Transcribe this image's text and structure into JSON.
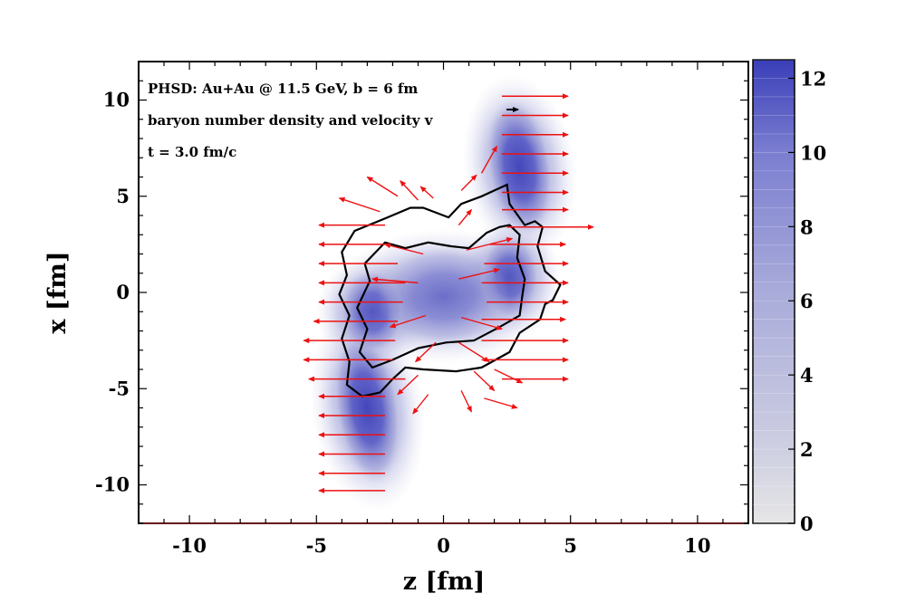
{
  "chart_data": {
    "type": "heatmap",
    "annotations": [
      "PHSD:  Au+Au @ 11.5 GeV,  b = 6 fm",
      "baryon number density and velocity  v",
      "t = 3.0 fm/c"
    ],
    "xlabel": "z  [fm]",
    "ylabel": "x  [fm]",
    "xlim": [
      -12,
      12
    ],
    "ylim": [
      -12,
      12
    ],
    "x_ticks": [
      -10,
      -5,
      0,
      5,
      10
    ],
    "x_tick_labels": [
      "-10",
      "-5",
      "0",
      "5",
      "10"
    ],
    "y_ticks": [
      -10,
      -5,
      0,
      5,
      10
    ],
    "y_tick_labels": [
      "-10",
      "-5",
      "0",
      "5",
      "10"
    ],
    "colorbar": {
      "range": [
        0,
        12.5
      ],
      "ticks": [
        0,
        2,
        4,
        6,
        8,
        10,
        12
      ],
      "tick_labels": [
        "0",
        "2",
        "4",
        "6",
        "8",
        "10",
        "12"
      ],
      "low_color": "#e4e4e4",
      "high_color": "#3c40b8"
    },
    "density_blobs": [
      {
        "name": "right-spectator",
        "cx": 3.0,
        "cy": 6.5,
        "rx": 1.3,
        "ry": 3.6,
        "rot": -8,
        "peak": 11.5
      },
      {
        "name": "left-spectator",
        "cx": -3.0,
        "cy": -6.0,
        "rx": 1.3,
        "ry": 4.0,
        "rot": -8,
        "peak": 11.5
      },
      {
        "name": "right-participant",
        "cx": 2.6,
        "cy": 0.8,
        "rx": 1.2,
        "ry": 2.2,
        "rot": 0,
        "peak": 9.5
      },
      {
        "name": "left-participant",
        "cx": -2.8,
        "cy": -1.0,
        "rx": 1.3,
        "ry": 2.2,
        "rot": 0,
        "peak": 9.5
      },
      {
        "name": "central-region",
        "cx": 0.0,
        "cy": -0.2,
        "rx": 2.6,
        "ry": 2.6,
        "rot": 0,
        "peak": 5.5
      }
    ],
    "contours": [
      {
        "level": "outer",
        "points": [
          [
            -3.5,
            3.2
          ],
          [
            -2.2,
            3.9
          ],
          [
            -1.3,
            4.4
          ],
          [
            -0.8,
            4.4
          ],
          [
            0.2,
            3.9
          ],
          [
            0.7,
            4.6
          ],
          [
            1.5,
            5.0
          ],
          [
            2.0,
            5.3
          ],
          [
            2.5,
            5.6
          ],
          [
            2.6,
            4.6
          ],
          [
            3.2,
            3.5
          ],
          [
            3.6,
            3.7
          ],
          [
            3.9,
            3.4
          ],
          [
            3.7,
            2.4
          ],
          [
            4.0,
            1.1
          ],
          [
            4.6,
            0.4
          ],
          [
            4.3,
            -0.4
          ],
          [
            4.0,
            -0.6
          ],
          [
            3.8,
            -1.4
          ],
          [
            3.0,
            -2.1
          ],
          [
            2.6,
            -3.1
          ],
          [
            1.5,
            -3.9
          ],
          [
            0.5,
            -4.1
          ],
          [
            -0.8,
            -4.0
          ],
          [
            -1.5,
            -3.9
          ],
          [
            -2.0,
            -4.5
          ],
          [
            -2.5,
            -5.2
          ],
          [
            -3.2,
            -5.4
          ],
          [
            -3.8,
            -4.8
          ],
          [
            -3.7,
            -3.6
          ],
          [
            -4.0,
            -2.4
          ],
          [
            -3.7,
            -1.2
          ],
          [
            -4.1,
            -0.1
          ],
          [
            -3.8,
            0.9
          ],
          [
            -4.0,
            2.1
          ],
          [
            -3.5,
            3.2
          ]
        ]
      },
      {
        "level": "inner",
        "points": [
          [
            -2.3,
            2.6
          ],
          [
            -1.5,
            2.3
          ],
          [
            -0.6,
            2.6
          ],
          [
            0.3,
            2.4
          ],
          [
            1.0,
            2.3
          ],
          [
            1.7,
            3.1
          ],
          [
            2.2,
            3.4
          ],
          [
            2.6,
            3.5
          ],
          [
            3.0,
            3.0
          ],
          [
            2.9,
            1.8
          ],
          [
            3.2,
            0.7
          ],
          [
            3.1,
            -0.2
          ],
          [
            3.0,
            -1.2
          ],
          [
            2.2,
            -1.8
          ],
          [
            1.2,
            -2.5
          ],
          [
            0.1,
            -2.6
          ],
          [
            -1.0,
            -2.9
          ],
          [
            -2.0,
            -3.5
          ],
          [
            -2.8,
            -3.9
          ],
          [
            -3.3,
            -3.1
          ],
          [
            -3.0,
            -1.9
          ],
          [
            -3.4,
            -0.8
          ],
          [
            -2.9,
            0.6
          ],
          [
            -3.1,
            1.5
          ],
          [
            -2.3,
            2.6
          ]
        ]
      }
    ],
    "velocity_field": [
      {
        "x": 2.3,
        "y": 10.2,
        "dx": 2.6,
        "dy": 0
      },
      {
        "x": 2.3,
        "y": 9.2,
        "dx": 2.6,
        "dy": 0
      },
      {
        "x": 2.3,
        "y": 8.2,
        "dx": 2.6,
        "dy": 0
      },
      {
        "x": 2.3,
        "y": 7.2,
        "dx": 2.6,
        "dy": 0
      },
      {
        "x": 2.3,
        "y": 6.2,
        "dx": 2.6,
        "dy": 0
      },
      {
        "x": 2.3,
        "y": 5.2,
        "dx": 2.6,
        "dy": 0
      },
      {
        "x": 2.3,
        "y": 4.3,
        "dx": 2.6,
        "dy": 0
      },
      {
        "x": 2.5,
        "y": 3.4,
        "dx": 3.4,
        "dy": 0
      },
      {
        "x": 1.8,
        "y": 2.5,
        "dx": 3.0,
        "dy": 0
      },
      {
        "x": 1.6,
        "y": 1.5,
        "dx": 3.3,
        "dy": 0
      },
      {
        "x": 1.5,
        "y": 0.5,
        "dx": 3.4,
        "dy": 0
      },
      {
        "x": 1.7,
        "y": -0.5,
        "dx": 3.2,
        "dy": 0
      },
      {
        "x": 1.5,
        "y": -1.4,
        "dx": 3.3,
        "dy": 0
      },
      {
        "x": 1.5,
        "y": -2.5,
        "dx": 3.4,
        "dy": 0
      },
      {
        "x": 1.5,
        "y": -3.5,
        "dx": 3.4,
        "dy": 0
      },
      {
        "x": 2.3,
        "y": -4.5,
        "dx": 2.6,
        "dy": 0
      },
      {
        "x": -2.3,
        "y": 3.5,
        "dx": -2.6,
        "dy": 0
      },
      {
        "x": -2.3,
        "y": 2.5,
        "dx": -2.6,
        "dy": 0
      },
      {
        "x": -1.8,
        "y": 1.5,
        "dx": -3.1,
        "dy": 0
      },
      {
        "x": -1.5,
        "y": 0.5,
        "dx": -3.4,
        "dy": 0
      },
      {
        "x": -1.6,
        "y": -0.5,
        "dx": -3.3,
        "dy": 0
      },
      {
        "x": -1.8,
        "y": -1.5,
        "dx": -3.3,
        "dy": 0
      },
      {
        "x": -1.9,
        "y": -2.5,
        "dx": -3.6,
        "dy": 0
      },
      {
        "x": -2.0,
        "y": -3.5,
        "dx": -3.5,
        "dy": 0
      },
      {
        "x": -1.5,
        "y": -4.5,
        "dx": -3.8,
        "dy": 0
      },
      {
        "x": -2.3,
        "y": -5.4,
        "dx": -2.6,
        "dy": 0
      },
      {
        "x": -2.3,
        "y": -6.4,
        "dx": -2.6,
        "dy": 0
      },
      {
        "x": -2.3,
        "y": -7.4,
        "dx": -2.6,
        "dy": 0
      },
      {
        "x": -2.3,
        "y": -8.4,
        "dx": -2.6,
        "dy": 0
      },
      {
        "x": -2.3,
        "y": -9.4,
        "dx": -2.6,
        "dy": 0
      },
      {
        "x": -2.3,
        "y": -10.3,
        "dx": -2.6,
        "dy": 0
      },
      {
        "x": -2.5,
        "y": 4.2,
        "dx": -1.6,
        "dy": 0.7
      },
      {
        "x": -1.8,
        "y": 5.0,
        "dx": -1.2,
        "dy": 1.0
      },
      {
        "x": -1.0,
        "y": 4.8,
        "dx": -0.7,
        "dy": 1.0
      },
      {
        "x": -0.4,
        "y": 4.9,
        "dx": -0.5,
        "dy": 0.6
      },
      {
        "x": 0.7,
        "y": 5.3,
        "dx": 0.6,
        "dy": 0.8
      },
      {
        "x": 1.5,
        "y": 6.2,
        "dx": 0.6,
        "dy": 1.4
      },
      {
        "x": 0.6,
        "y": 3.5,
        "dx": 0.5,
        "dy": 0.8
      },
      {
        "x": -0.8,
        "y": 2.0,
        "dx": -1.5,
        "dy": 0.5
      },
      {
        "x": 0.9,
        "y": 2.2,
        "dx": 1.8,
        "dy": 0.6
      },
      {
        "x": -1.0,
        "y": 0.5,
        "dx": -1.8,
        "dy": 0.2
      },
      {
        "x": 0.6,
        "y": 0.7,
        "dx": 1.6,
        "dy": 0.5
      },
      {
        "x": -0.7,
        "y": -1.2,
        "dx": -1.4,
        "dy": -0.6
      },
      {
        "x": 0.7,
        "y": -1.3,
        "dx": 1.6,
        "dy": -0.6
      },
      {
        "x": -0.3,
        "y": -2.6,
        "dx": -0.8,
        "dy": -1.0
      },
      {
        "x": 0.6,
        "y": -2.6,
        "dx": 1.2,
        "dy": -1.0
      },
      {
        "x": -1.0,
        "y": -4.3,
        "dx": -0.8,
        "dy": -1.0
      },
      {
        "x": -0.6,
        "y": -5.3,
        "dx": -0.6,
        "dy": -1.0
      },
      {
        "x": 0.7,
        "y": -5.1,
        "dx": 0.4,
        "dy": -1.1
      },
      {
        "x": 1.2,
        "y": -4.1,
        "dx": 0.8,
        "dy": -1.0
      },
      {
        "x": 1.6,
        "y": -5.5,
        "dx": 1.3,
        "dy": -0.5
      },
      {
        "x": 2.0,
        "y": -4.0,
        "dx": 1.1,
        "dy": -0.7
      }
    ],
    "colors": {
      "arrow": "#ee1111",
      "contour": "#000000",
      "density_high": "#3c40b8",
      "density_low": "#e6e6ee"
    }
  }
}
